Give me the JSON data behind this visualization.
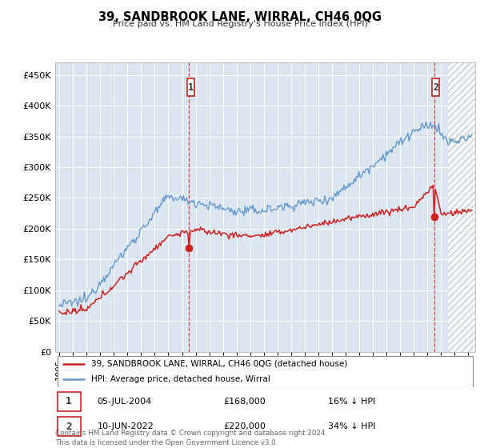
{
  "title": "39, SANDBROOK LANE, WIRRAL, CH46 0QG",
  "subtitle": "Price paid vs. HM Land Registry's House Price Index (HPI)",
  "property_label": "39, SANDBROOK LANE, WIRRAL, CH46 0QG (detached house)",
  "hpi_label": "HPI: Average price, detached house, Wirral",
  "property_color": "#cc2222",
  "hpi_color": "#6699cc",
  "transaction1_date": "05-JUL-2004",
  "transaction1_price": 168000,
  "transaction1_pct": "16% ↓ HPI",
  "transaction2_date": "10-JUN-2022",
  "transaction2_price": 220000,
  "transaction2_pct": "34% ↓ HPI",
  "yticks": [
    0,
    50000,
    100000,
    150000,
    200000,
    250000,
    300000,
    350000,
    400000,
    450000
  ],
  "ylim": [
    0,
    470000
  ],
  "xlim_start": 1994.7,
  "xlim_end": 2025.5,
  "plot_bg_color": "#dce6f0",
  "figure_bg_color": "#ffffff",
  "grid_color": "#ffffff",
  "footer": "Contains HM Land Registry data © Crown copyright and database right 2024.\nThis data is licensed under the Open Government Licence v3.0.",
  "t1_year": 2004.54,
  "t2_year": 2022.45,
  "hatch_start": 2023.5
}
